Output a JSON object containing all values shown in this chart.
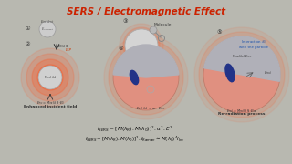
{
  "title": "SERS / Electromagnetic Effect",
  "title_color": "#cc2200",
  "slide_bg": "#b8b8b0",
  "formula1": "$I_{SERS} = [M(\\lambda_{R}).M(\\lambda_{0})]^{2}.\\alpha^{2}.E^{2}$",
  "formula2": "$I_{SERS} = [M(\\lambda_{R}).M(\\lambda_{0})]^{2}.I_{Raman} \\approx M(\\lambda_{0})^{4}I_{Inc}$",
  "label1": "Enhanced incident field",
  "label2": "Re-radiation process",
  "glow_color": "#ff5522",
  "blue_color": "#223388",
  "gray_circle": "#c8c8c8",
  "pink_sphere": "#e09080",
  "gray_wedge": "#b0b0b8",
  "text_dark": "#222222",
  "text_med": "#444444",
  "lsp_color": "#cc3300",
  "interact_color": "#2255aa"
}
